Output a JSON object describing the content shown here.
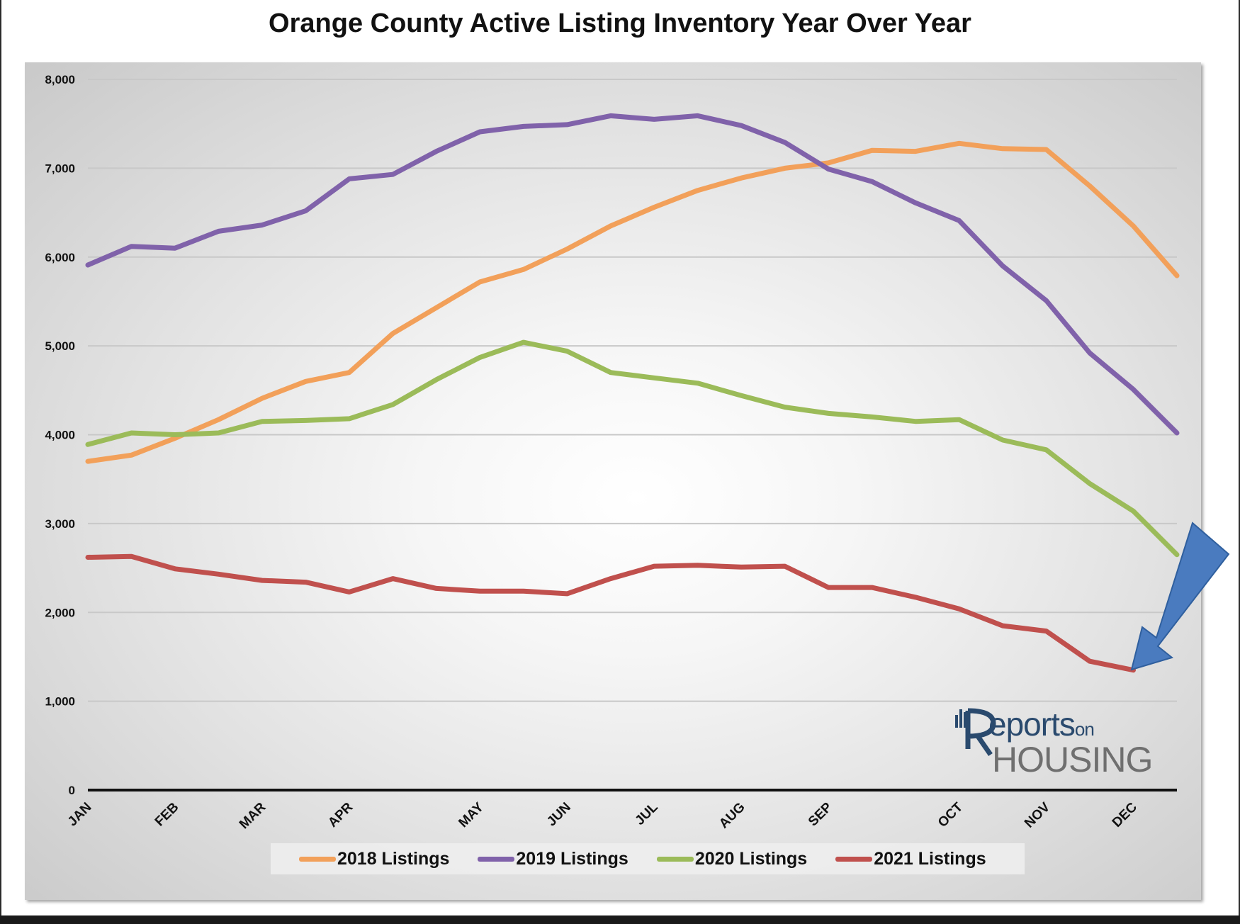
{
  "chart_data": {
    "type": "line",
    "title": "Orange County Active Listing Inventory Year Over Year",
    "xlabel": "",
    "ylabel": "",
    "ylim": [
      0,
      8000
    ],
    "yticks": [
      "0",
      "1,000",
      "2,000",
      "3,000",
      "4,000",
      "5,000",
      "6,000",
      "7,000",
      "8,000"
    ],
    "x_month_labels": [
      "JAN",
      "FEB",
      "MAR",
      "APR",
      "MAY",
      "JUN",
      "JUL",
      "AUG",
      "SEP",
      "OCT",
      "NOV",
      "DEC"
    ],
    "x_month_positions": [
      0,
      2,
      4,
      6,
      9,
      11,
      13,
      15,
      17,
      20,
      22,
      24
    ],
    "grid": true,
    "legend_position": "bottom",
    "series": [
      {
        "name": "2018 Listings",
        "color": "#f2a05a",
        "values": [
          3700,
          3770,
          3960,
          4170,
          4410,
          4600,
          4700,
          5140,
          5430,
          5720,
          5860,
          6090,
          6350,
          6560,
          6750,
          6890,
          7000,
          7060,
          7200,
          7190,
          7280,
          7220,
          7210,
          6800,
          6350,
          5790
        ]
      },
      {
        "name": "2019 Listings",
        "color": "#8062aa",
        "values": [
          5910,
          6120,
          6100,
          6290,
          6360,
          6520,
          6880,
          6930,
          7190,
          7410,
          7470,
          7490,
          7590,
          7550,
          7590,
          7480,
          7290,
          6990,
          6850,
          6610,
          6410,
          5900,
          5510,
          4920,
          4510,
          4020
        ]
      },
      {
        "name": "2020 Listings",
        "color": "#9bbb59",
        "values": [
          3890,
          4020,
          4000,
          4020,
          4150,
          4160,
          4180,
          4340,
          4620,
          4870,
          5040,
          4940,
          4700,
          4640,
          4580,
          4440,
          4310,
          4240,
          4200,
          4150,
          4170,
          3940,
          3830,
          3450,
          3140,
          2650
        ]
      },
      {
        "name": "2021 Listings",
        "color": "#c0504d",
        "values": [
          2620,
          2630,
          2490,
          2430,
          2360,
          2340,
          2230,
          2380,
          2270,
          2240,
          2240,
          2210,
          2380,
          2520,
          2530,
          2510,
          2520,
          2280,
          2280,
          2170,
          2040,
          1850,
          1790,
          1450,
          1350,
          null
        ]
      }
    ]
  },
  "logo": {
    "top_text": "eports",
    "on_text": "on",
    "bottom_text": "HOUSING",
    "alt": "Reports on Housing"
  },
  "arrow_color": "#4a7bbf"
}
